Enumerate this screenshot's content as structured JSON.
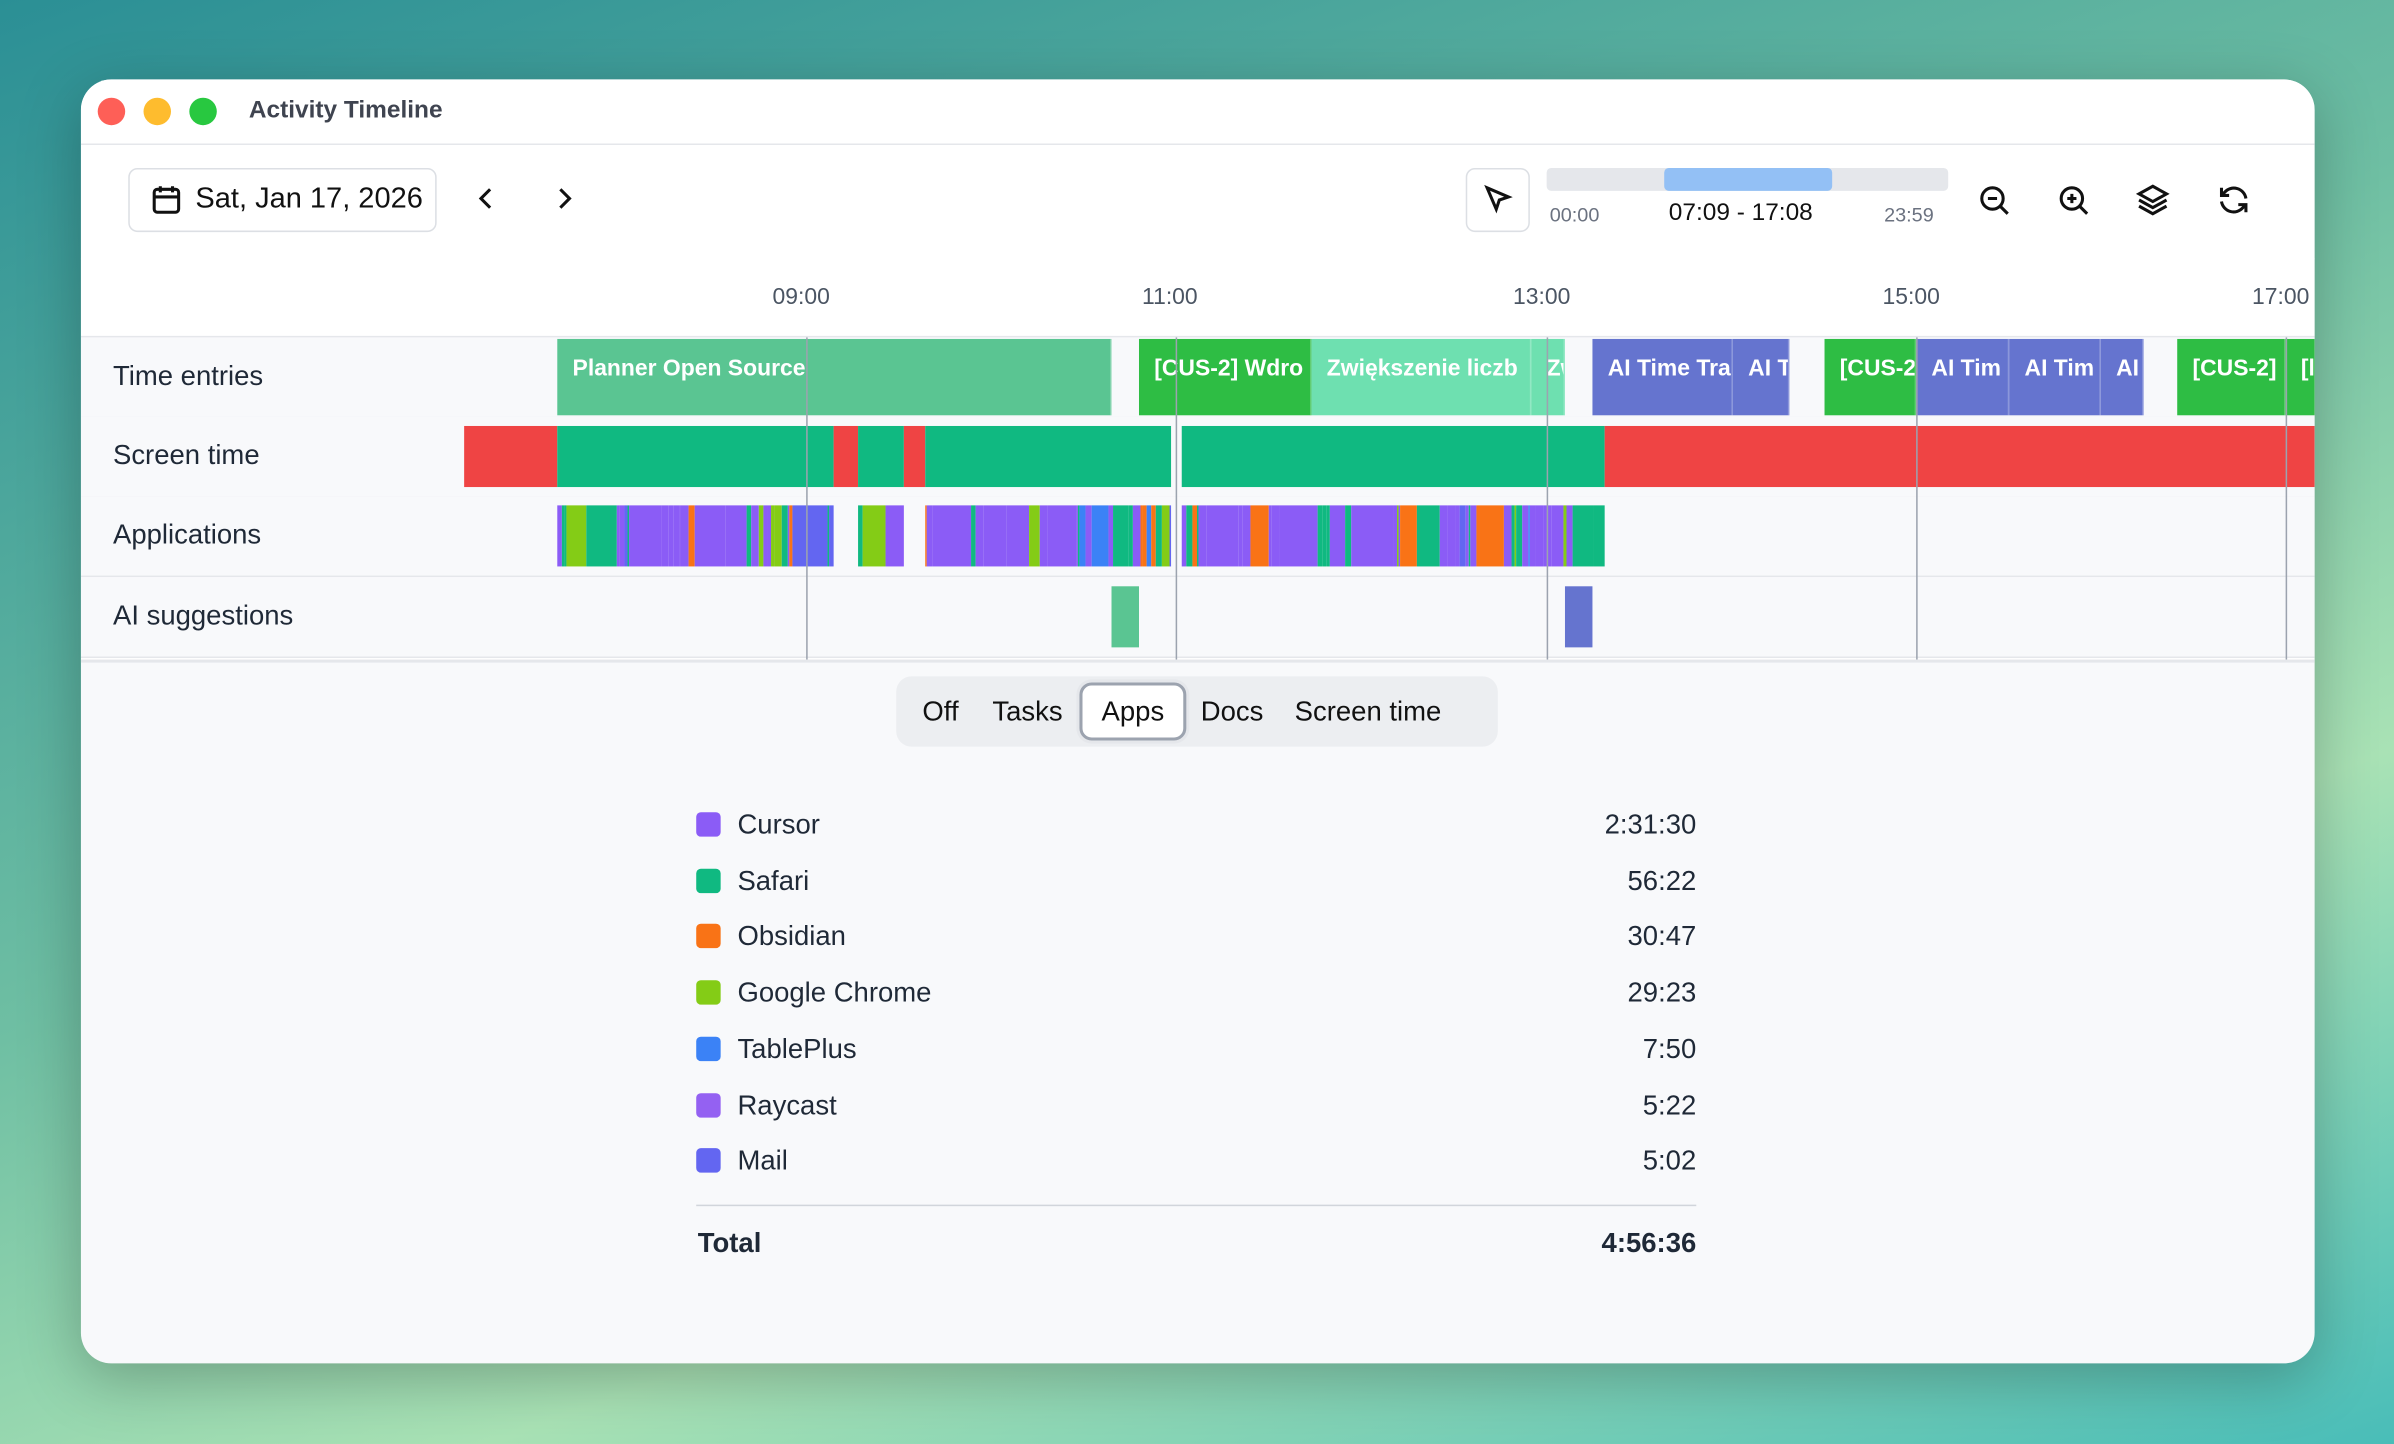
{
  "window": {
    "title": "Activity Timeline"
  },
  "toolbar": {
    "date": "Sat, Jan 17, 2026",
    "range": {
      "start": "00:00",
      "selection": "07:09 - 17:08",
      "end": "23:59"
    }
  },
  "timeline": {
    "hours": [
      "09:00",
      "11:00",
      "13:00",
      "15:00",
      "17:00"
    ],
    "rows": [
      "Time entries",
      "Screen time",
      "Applications",
      "AI suggestions"
    ],
    "time_entries": [
      "Planner Open Source",
      "[CUS-2] Wdro",
      "Zwiększenie liczb",
      "Zw",
      "AI Time Tra",
      "AI T",
      "[CUS-2",
      "AI Tim",
      "AI Tim",
      "AI",
      "[CUS-2]",
      "[l"
    ]
  },
  "view_tabs": {
    "tabs": [
      "Off",
      "Tasks",
      "Apps",
      "Docs",
      "Screen time"
    ],
    "selected": 2
  },
  "apps": {
    "rows": [
      {
        "name": "Cursor",
        "color": "#8b5cf6",
        "duration": "2:31:30"
      },
      {
        "name": "Safari",
        "color": "#10b981",
        "duration": "56:22"
      },
      {
        "name": "Obsidian",
        "color": "#f97316",
        "duration": "30:47"
      },
      {
        "name": "Google Chrome",
        "color": "#84cc16",
        "duration": "29:23"
      },
      {
        "name": "TablePlus",
        "color": "#3b82f6",
        "duration": "7:50"
      },
      {
        "name": "Raycast",
        "color": "#9461f2",
        "duration": "5:22"
      },
      {
        "name": "Mail",
        "color": "#6366f1",
        "duration": "5:02"
      }
    ],
    "total_label": "Total",
    "total": "4:56:36"
  }
}
